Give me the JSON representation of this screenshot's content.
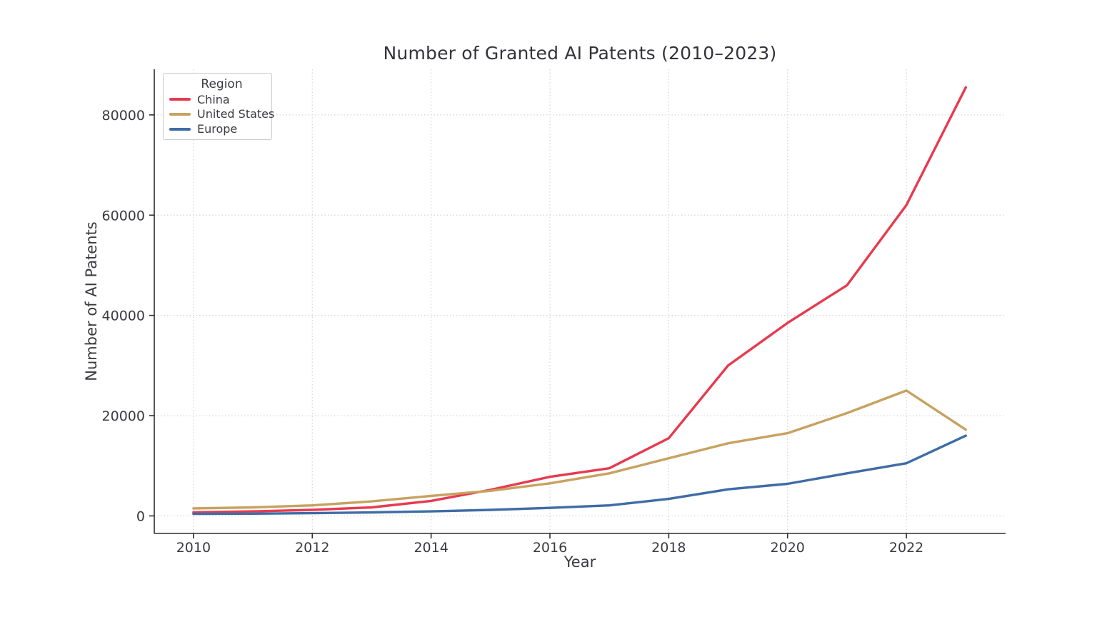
{
  "chart_data": {
    "type": "line",
    "title": "Number of Granted AI Patents (2010–2023)",
    "xlabel": "Year",
    "ylabel": "Number of AI Patents",
    "x": [
      2010,
      2011,
      2012,
      2013,
      2014,
      2015,
      2016,
      2017,
      2018,
      2019,
      2020,
      2021,
      2022,
      2023
    ],
    "series": [
      {
        "name": "China",
        "color": "#e73a50",
        "values": [
          700,
          900,
          1200,
          1700,
          3000,
          5200,
          7800,
          9500,
          15500,
          30000,
          38500,
          46000,
          62000,
          85500
        ]
      },
      {
        "name": "United States",
        "color": "#c7a260",
        "values": [
          1500,
          1700,
          2100,
          2900,
          4000,
          5000,
          6500,
          8500,
          11500,
          14500,
          16500,
          20500,
          25000,
          17200
        ]
      },
      {
        "name": "Europe",
        "color": "#3f6ca6",
        "values": [
          400,
          450,
          550,
          700,
          900,
          1200,
          1600,
          2100,
          3400,
          5300,
          6400,
          8500,
          10500,
          16000
        ]
      }
    ],
    "legend": {
      "title": "Region",
      "position": "upper left"
    },
    "xticks": [
      2010,
      2012,
      2014,
      2016,
      2018,
      2020,
      2022
    ],
    "yticks": [
      0,
      20000,
      40000,
      60000,
      80000
    ],
    "xlim": [
      2009.34,
      2023.67
    ],
    "ylim": [
      -3500,
      89100
    ],
    "grid": "dotted, both axes"
  },
  "style": {
    "grid_color": "#d9d2d9",
    "spine_color": "#2e2e33",
    "tick_color": "#2e2e33",
    "text_color": "#3b3b40"
  }
}
